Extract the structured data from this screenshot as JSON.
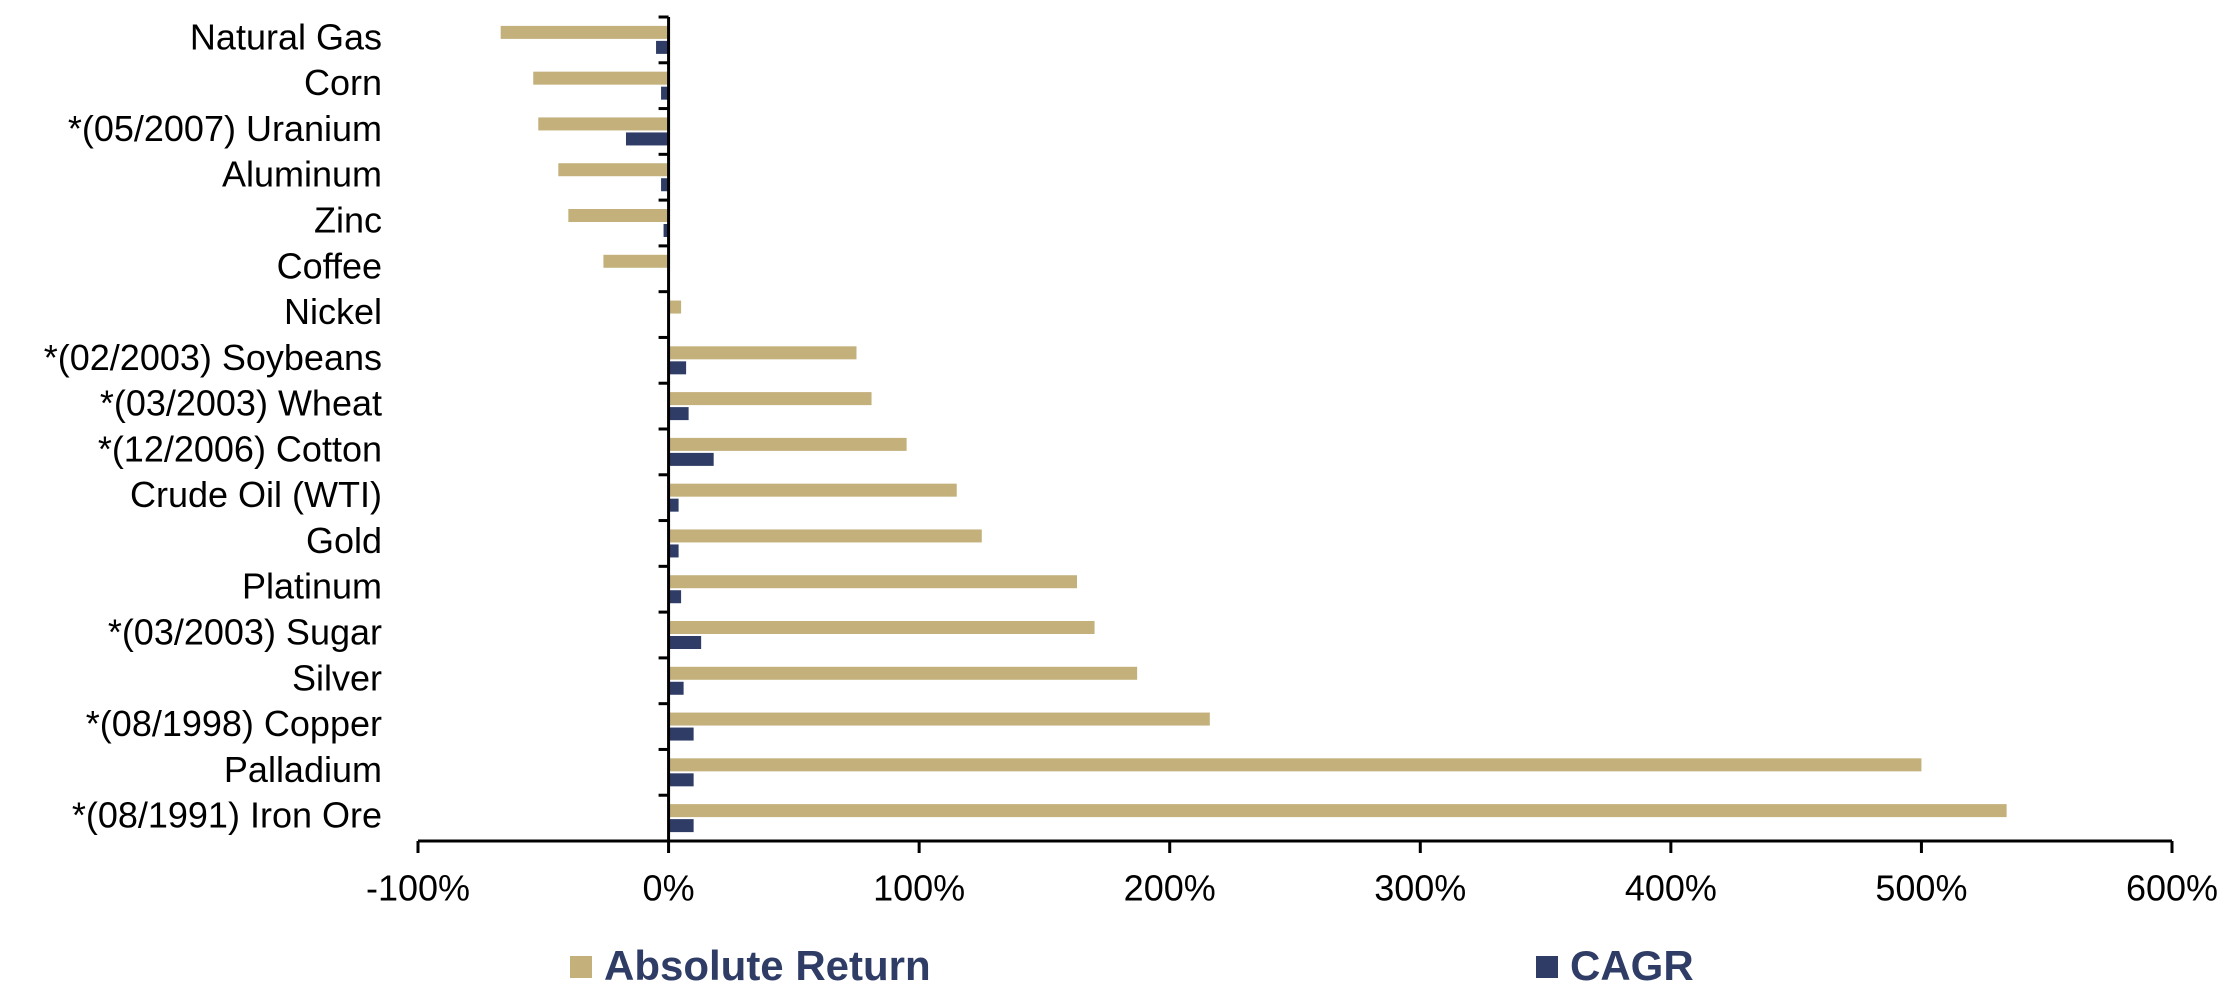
{
  "chart_data": {
    "type": "hbar",
    "categories": [
      "Natural Gas",
      "Corn",
      "*(05/2007) Uranium",
      "Aluminum",
      "Zinc",
      "Coffee",
      "Nickel",
      "*(02/2003) Soybeans",
      "*(03/2003) Wheat",
      "*(12/2006) Cotton",
      "Crude Oil (WTI)",
      "Gold",
      "Platinum",
      "*(03/2003) Sugar",
      "Silver",
      "*(08/1998) Copper",
      "Palladium",
      "*(08/1991) Iron Ore"
    ],
    "series": [
      {
        "name": "Absolute Return",
        "color": "#c3b07b",
        "values": [
          -67,
          -54,
          -52,
          -44,
          -40,
          -26,
          5,
          75,
          81,
          95,
          115,
          125,
          163,
          170,
          187,
          216,
          500,
          534
        ]
      },
      {
        "name": "CAGR",
        "color": "#2f3c66",
        "values": [
          -5,
          -3,
          -17,
          -3,
          -2,
          0,
          0,
          7,
          8,
          18,
          4,
          4,
          5,
          13,
          6,
          10,
          10,
          10
        ]
      }
    ],
    "xlim": [
      -100,
      600
    ],
    "xticks": [
      {
        "value": -100,
        "label": "-100%"
      },
      {
        "value": 0,
        "label": "0%"
      },
      {
        "value": 100,
        "label": "100%"
      },
      {
        "value": 200,
        "label": "200%"
      },
      {
        "value": 300,
        "label": "300%"
      },
      {
        "value": 400,
        "label": "400%"
      },
      {
        "value": 500,
        "label": "500%"
      },
      {
        "value": 600,
        "label": "600%"
      }
    ],
    "grid": false
  }
}
